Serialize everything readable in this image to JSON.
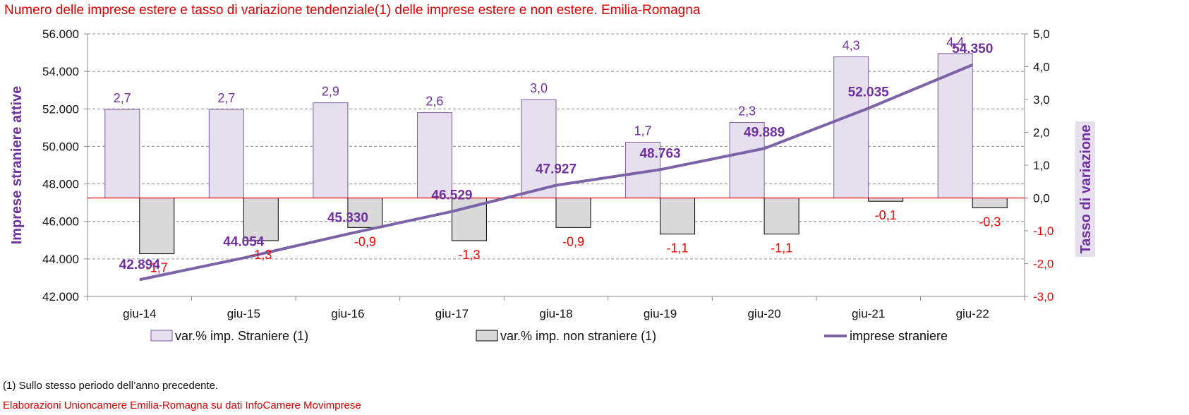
{
  "title": "Numero delle imprese estere e tasso di variazione tendenziale(1) delle imprese estere e non estere. Emilia-Romagna",
  "footnote": "(1) Sullo stesso periodo dell’anno precedente.",
  "source": "Elaborazioni Unioncamere Emilia-Romagna su dati InfoCamere Movimprese",
  "colors": {
    "title": "#e00000",
    "bar_foreign_fill": "#e6e0ee",
    "bar_foreign_stroke": "#7a5aa0",
    "bar_other_fill": "#d9d9d9",
    "bar_other_stroke": "#000000",
    "line": "#7c62a6",
    "label_purple": "#7030a0",
    "label_negative": "#ff0000",
    "zero_line": "#e00000"
  },
  "chart_data": {
    "type": "bar+line",
    "categories": [
      "giu-14",
      "giu-15",
      "giu-16",
      "giu-17",
      "giu-18",
      "giu-19",
      "giu-20",
      "giu-21",
      "giu-22"
    ],
    "series": [
      {
        "name": "var.% imp. Straniere (1)",
        "type": "bar",
        "axis": "right",
        "values": [
          2.7,
          2.7,
          2.9,
          2.6,
          3.0,
          1.7,
          2.3,
          4.3,
          4.4
        ],
        "labels": [
          "2,7",
          "2,7",
          "2,9",
          "2,6",
          "3,0",
          "1,7",
          "2,3",
          "4,3",
          "4,4"
        ]
      },
      {
        "name": "var.% imp. non straniere (1)",
        "type": "bar",
        "axis": "right",
        "values": [
          -1.7,
          -1.3,
          -0.9,
          -1.3,
          -0.9,
          -1.1,
          -1.1,
          -0.1,
          -0.3
        ],
        "labels": [
          "-1,7",
          "-1,3",
          "-0,9",
          "-1,3",
          "-0,9",
          "-1,1",
          "-1,1",
          "-0,1",
          "-0,3"
        ]
      },
      {
        "name": "imprese straniere",
        "type": "line",
        "axis": "left",
        "values": [
          42894,
          44054,
          45330,
          46529,
          47927,
          48763,
          49889,
          52035,
          54350
        ],
        "labels": [
          "42.894",
          "44.054",
          "45.330",
          "46.529",
          "47.927",
          "48.763",
          "49.889",
          "52.035",
          "54.350"
        ]
      }
    ],
    "y_left": {
      "label": "Imprese straniere attive",
      "min": 42000,
      "max": 56000,
      "ticks": [
        "42.000",
        "44.000",
        "46.000",
        "48.000",
        "50.000",
        "52.000",
        "54.000",
        "56.000"
      ]
    },
    "y_right": {
      "label": "Tasso di variazione",
      "min": -3,
      "max": 5,
      "ticks": [
        "-3,0",
        "-2,0",
        "-1,0",
        "0,0",
        "1,0",
        "2,0",
        "3,0",
        "4,0",
        "5,0"
      ]
    },
    "grid": true,
    "legend": {
      "position": "bottom",
      "items": [
        "var.% imp. Straniere (1)",
        "var.% imp. non straniere (1)",
        "imprese straniere"
      ]
    }
  }
}
